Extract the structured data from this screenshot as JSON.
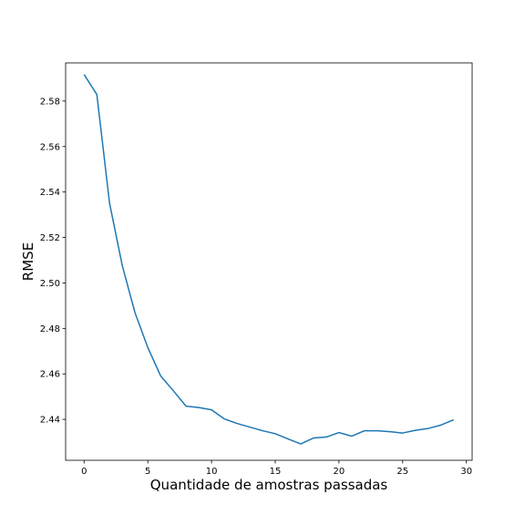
{
  "chart_data": {
    "type": "line",
    "title": "",
    "xlabel": "Quantidade de amostras passadas",
    "ylabel": "RMSE",
    "xlim": [
      -1.45,
      30.45
    ],
    "ylim": [
      2.422,
      2.5968
    ],
    "xticks": [
      0,
      5,
      10,
      15,
      20,
      25,
      30
    ],
    "xtick_labels": [
      "0",
      "5",
      "10",
      "15",
      "20",
      "25",
      "30"
    ],
    "yticks": [
      2.44,
      2.46,
      2.48,
      2.5,
      2.52,
      2.54,
      2.56,
      2.58
    ],
    "ytick_labels": [
      "2.44",
      "2.46",
      "2.48",
      "2.50",
      "2.52",
      "2.54",
      "2.56",
      "2.58"
    ],
    "grid": false,
    "legend": "none",
    "series": [
      {
        "color": "#1f77b4",
        "x": [
          0,
          1,
          2,
          3,
          4,
          5,
          6,
          7,
          8,
          9,
          10,
          11,
          12,
          13,
          14,
          15,
          16,
          17,
          18,
          19,
          20,
          21,
          22,
          23,
          24,
          25,
          26,
          27,
          28,
          29
        ],
        "y": [
          2.5917,
          2.5829,
          2.535,
          2.5075,
          2.4868,
          2.4716,
          2.4592,
          2.4526,
          2.4458,
          2.4452,
          2.4442,
          2.4402,
          2.4382,
          2.4366,
          2.435,
          2.4337,
          2.4314,
          2.4292,
          2.4318,
          2.4322,
          2.4342,
          2.4326,
          2.435,
          2.435,
          2.4346,
          2.434,
          2.4352,
          2.436,
          2.4375,
          2.4398
        ]
      }
    ]
  }
}
